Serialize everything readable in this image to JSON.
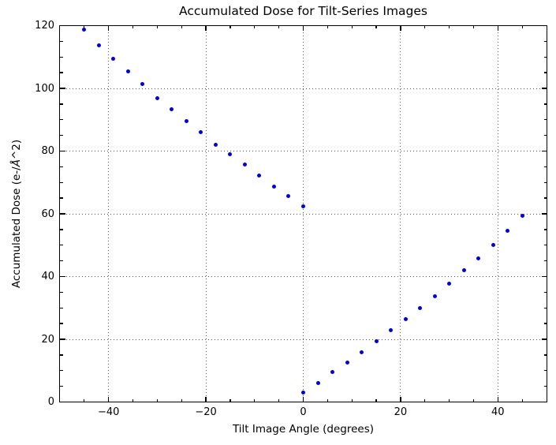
{
  "title": "Accumulated Dose for Tilt-Series Images",
  "xlabel": "Tilt Image Angle (degrees)",
  "ylabel": {
    "prefix": "Accumulated Dose (e-/",
    "angstrom": "Å",
    "suffix": "^2)"
  },
  "chart_data": {
    "type": "scatter",
    "title": "Accumulated Dose for Tilt-Series Images",
    "xlabel": "Tilt Image Angle (degrees)",
    "ylabel": "Accumulated Dose (e-/Å^2)",
    "xlim": [
      -50,
      50
    ],
    "ylim": [
      0,
      120
    ],
    "x_major_ticks": [
      -40,
      -20,
      0,
      20,
      40
    ],
    "x_tick_labels": [
      "−40",
      "−20",
      "0",
      "20",
      "40"
    ],
    "y_major_ticks": [
      0,
      20,
      40,
      60,
      80,
      100,
      120
    ],
    "y_tick_labels": [
      "0",
      "20",
      "40",
      "60",
      "80",
      "100",
      "120"
    ],
    "minor_tick_step": 5,
    "grid": true,
    "grid_style": "dotted",
    "legend_position": "none",
    "marker": "dot",
    "marker_size_px": 5,
    "marker_color": "#0000e0",
    "grid_color": "#555555",
    "background": "#ffffff",
    "points": [
      [
        0,
        2.9
      ],
      [
        3,
        6.1
      ],
      [
        6,
        9.5
      ],
      [
        9,
        12.7
      ],
      [
        12,
        15.9
      ],
      [
        15,
        19.3
      ],
      [
        18,
        23.0
      ],
      [
        21,
        26.4
      ],
      [
        24,
        30.0
      ],
      [
        27,
        33.7
      ],
      [
        30,
        37.7
      ],
      [
        33,
        41.9
      ],
      [
        36,
        45.9
      ],
      [
        39,
        50.1
      ],
      [
        42,
        54.7
      ],
      [
        45,
        59.3
      ],
      [
        0,
        62.3
      ],
      [
        -3,
        65.7
      ],
      [
        -6,
        68.8
      ],
      [
        -9,
        72.1
      ],
      [
        -12,
        75.7
      ],
      [
        -15,
        78.9
      ],
      [
        -18,
        82.1
      ],
      [
        -21,
        86.0
      ],
      [
        -24,
        89.6
      ],
      [
        -27,
        93.3
      ],
      [
        -30,
        96.9
      ],
      [
        -33,
        101.3
      ],
      [
        -36,
        105.3
      ],
      [
        -39,
        109.4
      ],
      [
        -42,
        113.8
      ],
      [
        -45,
        118.7
      ]
    ]
  }
}
